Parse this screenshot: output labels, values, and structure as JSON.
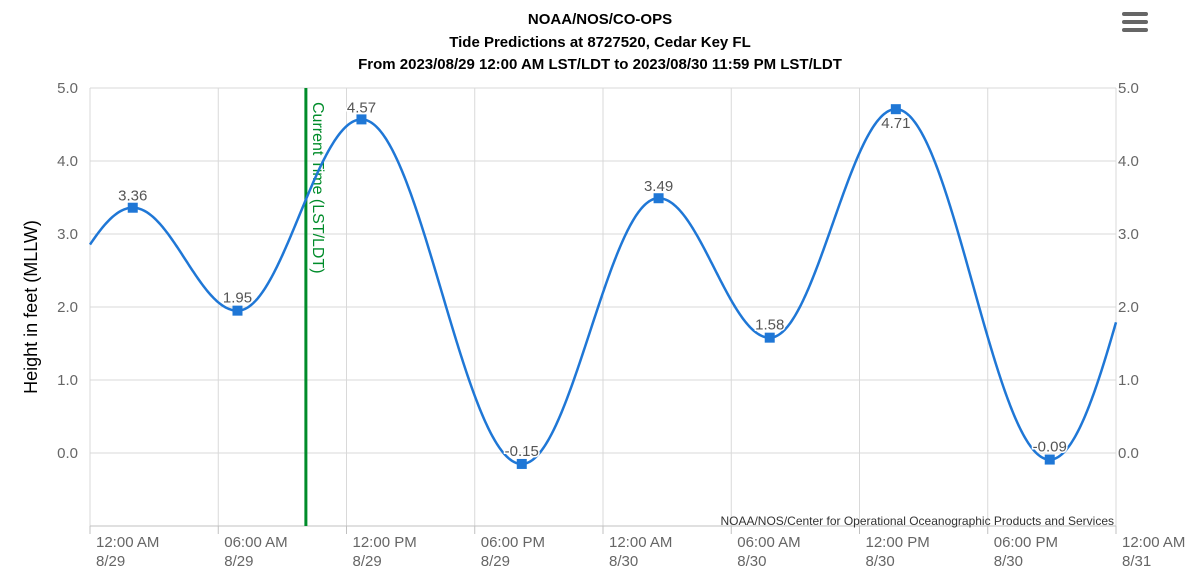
{
  "header": {
    "title": "NOAA/NOS/CO-OPS",
    "subtitle": "Tide Predictions at 8727520, Cedar Key FL",
    "range": "From 2023/08/29 12:00 AM LST/LDT to 2023/08/30 11:59 PM LST/LDT"
  },
  "menu": {
    "icon": "hamburger-menu-icon"
  },
  "credit": "NOAA/NOS/Center for Operational Oceanographic Products and Services",
  "current_time_label": "Current Time (LST/LDT)",
  "colors": {
    "series": "#1f77d6",
    "marker": "#1f77d6",
    "current_time": "#008c2a",
    "grid": "#d9d9d9"
  },
  "chart_data": {
    "type": "line",
    "ylabel": "Height in feet (MLLW)",
    "ylim": [
      -1.0,
      5.0
    ],
    "yticks": [
      "0.0",
      "1.0",
      "2.0",
      "3.0",
      "4.0",
      "5.0"
    ],
    "ytick_values": [
      0,
      1,
      2,
      3,
      4,
      5
    ],
    "xlim_hours": [
      0,
      48
    ],
    "xticks": [
      {
        "time": "12:00 AM",
        "date": "8/29"
      },
      {
        "time": "06:00 AM",
        "date": "8/29"
      },
      {
        "time": "12:00 PM",
        "date": "8/29"
      },
      {
        "time": "06:00 PM",
        "date": "8/29"
      },
      {
        "time": "12:00 AM",
        "date": "8/30"
      },
      {
        "time": "06:00 AM",
        "date": "8/30"
      },
      {
        "time": "12:00 PM",
        "date": "8/30"
      },
      {
        "time": "06:00 PM",
        "date": "8/30"
      },
      {
        "time": "12:00 AM",
        "date": "8/31"
      }
    ],
    "current_time_hour": 10.1,
    "extrema": [
      {
        "hour": 2.0,
        "value": 3.36,
        "label": "3.36",
        "type": "high"
      },
      {
        "hour": 6.9,
        "value": 1.95,
        "label": "1.95",
        "type": "low"
      },
      {
        "hour": 12.7,
        "value": 4.57,
        "label": "4.57",
        "type": "high"
      },
      {
        "hour": 20.2,
        "value": -0.15,
        "label": "-0.15",
        "type": "low"
      },
      {
        "hour": 26.6,
        "value": 3.49,
        "label": "3.49",
        "type": "high"
      },
      {
        "hour": 31.8,
        "value": 1.58,
        "label": "1.58",
        "type": "low"
      },
      {
        "hour": 37.7,
        "value": 4.71,
        "label": "4.71",
        "type": "high"
      },
      {
        "hour": 44.9,
        "value": -0.09,
        "label": "-0.09",
        "type": "low"
      }
    ],
    "start_value": 2.72,
    "end_value": 1.8
  }
}
